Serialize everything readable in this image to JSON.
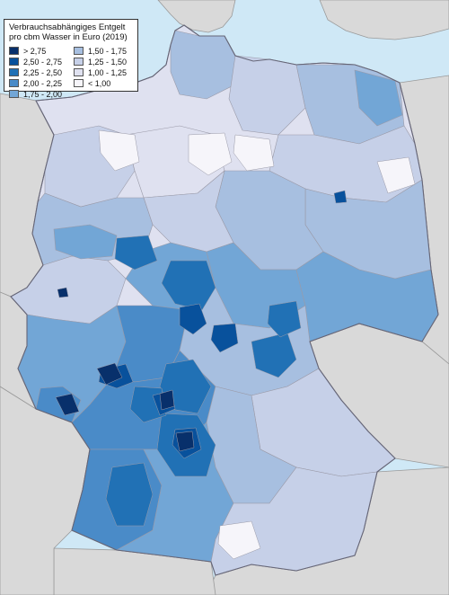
{
  "legend": {
    "title_line1": "Verbrauchsabhängiges Entgelt",
    "title_line2": "pro cbm Wasser in Euro (2019)",
    "classes": [
      {
        "label": "> 2,75",
        "color": "#08306b"
      },
      {
        "label": "2,50 - 2,75",
        "color": "#08519c"
      },
      {
        "label": "2,25 - 2,50",
        "color": "#2171b5"
      },
      {
        "label": "2,00 - 2,25",
        "color": "#4a8bc8"
      },
      {
        "label": "1,75 - 2,00",
        "color": "#72a6d6"
      },
      {
        "label": "1,50 - 1,75",
        "color": "#a7bfe0"
      },
      {
        "label": "1,25 - 1,50",
        "color": "#c6d0e8"
      },
      {
        "label": "1,00 - 1,25",
        "color": "#dfe1f0"
      },
      {
        "label": "< 1,00",
        "color": "#f6f5fa"
      }
    ]
  },
  "colors": {
    "sea": "#cfe8f6",
    "neighbors": "#d9d9d9",
    "borders": "#9a9aa8"
  }
}
